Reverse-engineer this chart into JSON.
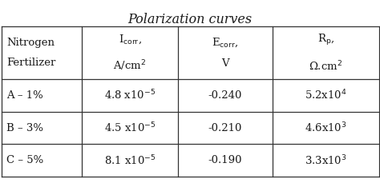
{
  "title": "Polarization curves",
  "col_headers_line1": [
    "Nitrogen",
    "Iₐ₀ₑₑ,",
    "Eₐ₀ₑₑ,",
    "Rₚ,"
  ],
  "col_headers_line2": [
    "Fertilizer",
    "A/cm²",
    "V",
    "Ω.cm²"
  ],
  "header_labels": [
    "Nitrogen\nFertilizer",
    "I$_\\mathrm{corr}$,\nA/cm$^2$",
    "E$_\\mathrm{corr}$,\nV",
    "R$_\\mathrm{p}$,\nΩ.cm$^2$"
  ],
  "rows": [
    [
      "A – 1%",
      "4.8 x10$^{-5}$",
      "-0.240",
      "5.2x10$^4$"
    ],
    [
      "B – 3%",
      "4.5 x10$^{-5}$",
      "-0.210",
      "4.6x10$^3$"
    ],
    [
      "C – 5%",
      "8.1 x10$^{-5}$",
      "-0.190",
      "3.3x10$^3$"
    ]
  ],
  "bg_color": "#ffffff",
  "text_color": "#1a1a1a",
  "line_color": "#333333",
  "title_fontsize": 11.5,
  "cell_fontsize": 9.5
}
